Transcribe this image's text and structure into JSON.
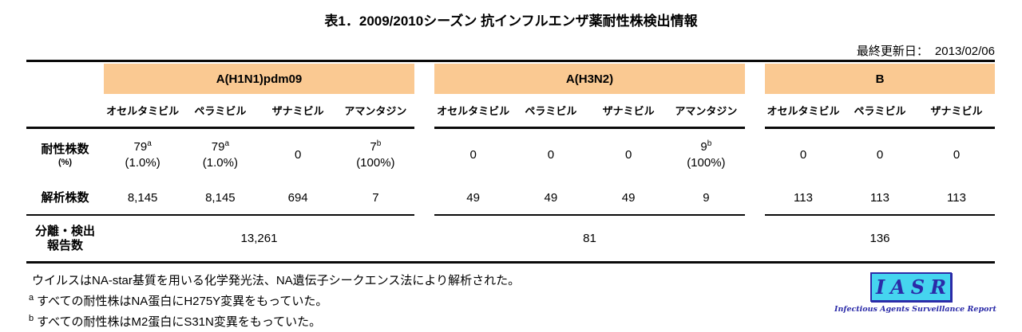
{
  "page": {
    "title": "表1．2009/2010シーズン 抗インフルエンザ薬耐性株検出情報",
    "updated_label": "最終更新日：",
    "updated_date": "2013/02/06"
  },
  "table": {
    "header_bg": "#FAC992",
    "row_labels": {
      "resistant_line1": "耐性株数",
      "resistant_line2": "(%)",
      "analyzed": "解析株数",
      "reported_line1": "分離・検出",
      "reported_line2": "報告数"
    },
    "groups": [
      {
        "name": "A(H1N1)pdm09",
        "drugs": [
          "オセルタミビル",
          "ペラミビル",
          "ザナミビル",
          "アマンタジン"
        ],
        "resistant": [
          {
            "value": "79",
            "sup": "a",
            "pct": "(1.0%)"
          },
          {
            "value": "79",
            "sup": "a",
            "pct": "(1.0%)"
          },
          {
            "value": "0"
          },
          {
            "value": "7",
            "sup": "b",
            "pct": "(100%)"
          }
        ],
        "analyzed": [
          "8,145",
          "8,145",
          "694",
          "7"
        ],
        "reported": "13,261"
      },
      {
        "name": "A(H3N2)",
        "drugs": [
          "オセルタミビル",
          "ペラミビル",
          "ザナミビル",
          "アマンタジン"
        ],
        "resistant": [
          {
            "value": "0"
          },
          {
            "value": "0"
          },
          {
            "value": "0"
          },
          {
            "value": "9",
            "sup": "b",
            "pct": "(100%)"
          }
        ],
        "analyzed": [
          "49",
          "49",
          "49",
          "9"
        ],
        "reported": "81"
      },
      {
        "name": "B",
        "drugs": [
          "オセルタミビル",
          "ペラミビル",
          "ザナミビル"
        ],
        "resistant": [
          {
            "value": "0"
          },
          {
            "value": "0"
          },
          {
            "value": "0"
          }
        ],
        "analyzed": [
          "113",
          "113",
          "113"
        ],
        "reported": "136"
      }
    ]
  },
  "footnotes": [
    {
      "sup": "",
      "text": "ウイルスはNA-star基質を用いる化学発光法、NA遺伝子シークエンス法により解析された。"
    },
    {
      "sup": "a",
      "text": "すべての耐性株はNA蛋白にH275Y変異をもっていた。"
    },
    {
      "sup": "b",
      "text": "すべての耐性株はM2蛋白にS31N変異をもっていた。"
    }
  ],
  "logo": {
    "acronym": "IASR",
    "subtitle": "Infectious Agents Surveillance Report",
    "box_color": "#45D5EF",
    "text_color": "#2B2BA8"
  }
}
